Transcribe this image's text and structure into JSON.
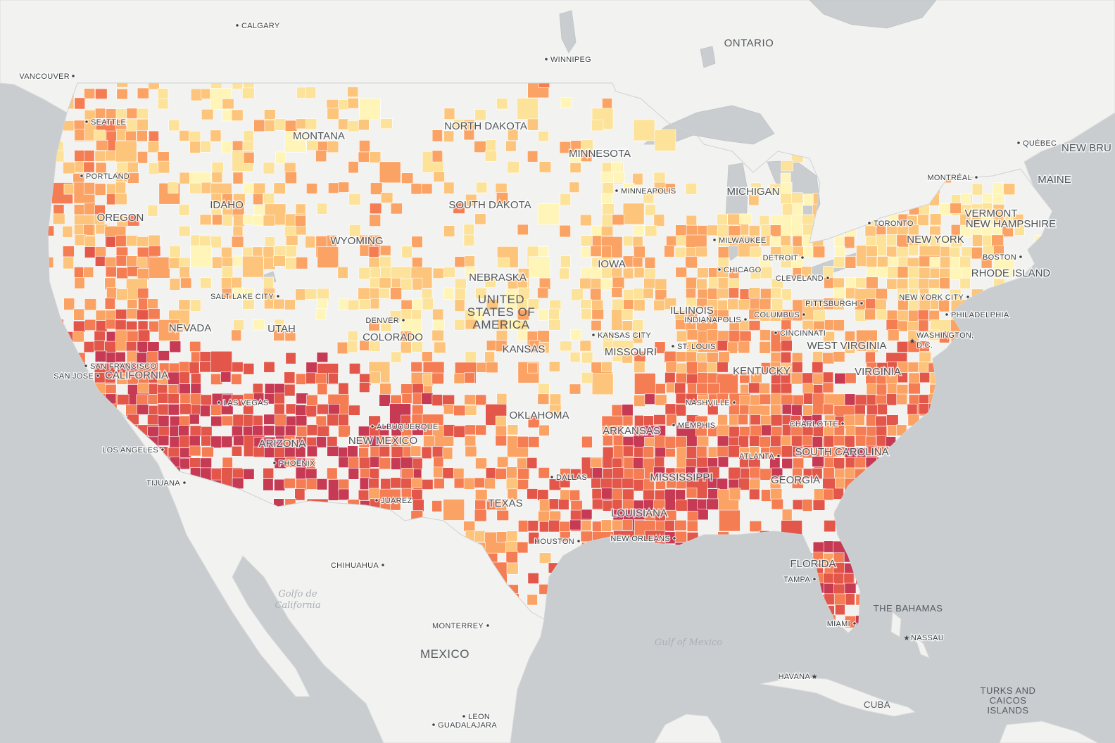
{
  "map": {
    "choropleth_colors": [
      "#fff5b8",
      "#fde29a",
      "#fdc57c",
      "#fba364",
      "#f57d53",
      "#e3574a",
      "#c73a54"
    ],
    "land_color": "#f2f2f0",
    "water_color": "#c9cdd0"
  },
  "labels": {
    "countries": {
      "usa": "UNITED STATES OF AMERICA",
      "usa_line1": "UNITED",
      "usa_line2": "STATES OF",
      "usa_line3": "AMERICA",
      "mexico": "MEXICO",
      "cuba": "CUBA",
      "bahamas": "THE BAHAMAS",
      "turks": "TURKS AND CAICOS ISLANDS",
      "turks_line1": "TURKS AND",
      "turks_line2": "CAICOS",
      "turks_line3": "ISLANDS",
      "ontario": "ONTARIO"
    },
    "water": {
      "gulf_mexico": "Gulf of Mexico",
      "golfo_california": "Golfo de California",
      "golfo_line1": "Golfo de",
      "golfo_line2": "California"
    },
    "states": {
      "washington": "",
      "montana": "MONTANA",
      "north_dakota": "NORTH DAKOTA",
      "minnesota": "MINNESOTA",
      "oregon": "OREGON",
      "idaho": "IDAHO",
      "south_dakota": "SOUTH DAKOTA",
      "wyoming": "WYOMING",
      "michigan": "MICHIGAN",
      "iowa": "IOWA",
      "nebraska": "NEBRASKA",
      "nevada": "NEVADA",
      "utah": "UTAH",
      "colorado": "COLORADO",
      "kansas": "KANSAS",
      "missouri": "MISSOURI",
      "illinois": "ILLINOIS",
      "california": "CALIFORNIA",
      "arizona": "ARIZONA",
      "new_mexico": "NEW MEXICO",
      "oklahoma": "OKLAHOMA",
      "arkansas": "ARKANSAS",
      "texas": "TEXAS",
      "mississippi": "MISSISSIPPI",
      "louisiana": "LOUISIANA",
      "georgia": "GEORGIA",
      "south_carolina": "SOUTH CAROLINA",
      "kentucky": "KENTUCKY",
      "west_virginia": "WEST VIRGINIA",
      "virginia": "VIRGINIA",
      "new_york": "NEW YORK",
      "vermont": "VERMONT",
      "new_hampshire": "NEW HAMPSHIRE",
      "rhode_island": "RHODE ISLAND",
      "maine": "MAINE",
      "florida": "FLORIDA",
      "new_brunswick": "NEW BRU"
    },
    "cities": {
      "calgary": "CALGARY",
      "winnipeg": "WINNIPEG",
      "vancouver": "VANCOUVER",
      "seattle": "SEATTLE",
      "portland": "PORTLAND",
      "minneapolis": "MINNEAPOLIS",
      "milwaukee": "MILWAUKEE",
      "detroit": "DETROIT",
      "chicago": "CHICAGO",
      "toronto": "TORONTO",
      "montreal": "MONTRÉAL",
      "quebec": "QUÉBEC",
      "boston": "BOSTON",
      "cleveland": "CLEVELAND",
      "pittsburgh": "PITTSBURGH",
      "new_york_city": "NEW YORK CITY",
      "philadelphia": "PHILADELPHIA",
      "washington_dc": "WASHINGTON, D.C.",
      "washington_line1": "WASHINGTON,",
      "washington_line2": "D.C.",
      "salt_lake_city": "SALT LAKE CITY",
      "denver": "DENVER",
      "kansas_city": "KANSAS CITY",
      "st_louis": "ST. LOUIS",
      "indianapolis": "INDIANAPOLIS",
      "columbus": "COLUMBUS",
      "cincinnati": "CINCINNATI",
      "san_francisco": "SAN FRANCISCO",
      "san_jose": "SAN JOSE",
      "las_vegas": "LAS VEGAS",
      "los_angeles": "LOS ANGELES",
      "tijuana": "TIJUANA",
      "phoenix": "PHOENIX",
      "albuquerque": "ALBUQUERQUE",
      "juarez": "JUAREZ",
      "nashville": "NASHVILLE",
      "memphis": "MEMPHIS",
      "charlotte": "CHARLOTTE",
      "atlanta": "ATLANTA",
      "dallas": "DALLAS",
      "houston": "HOUSTON",
      "new_orleans": "NEW ORLEANS",
      "tampa": "TAMPA",
      "miami": "MIAMI",
      "chihuahua": "CHIHUAHUA",
      "monterrey": "MONTERREY",
      "leon": "LEON",
      "guadalajara": "GUADALAJARA",
      "nassau": "NASSAU",
      "havana": "HAVANA"
    }
  }
}
